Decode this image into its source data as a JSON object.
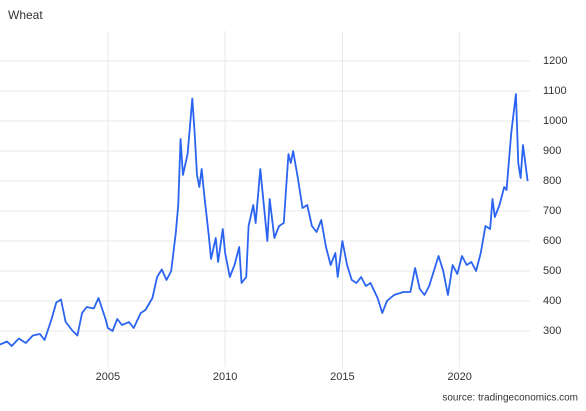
{
  "chart_data": {
    "type": "line",
    "title": "Wheat",
    "source": "source: tradingeconomics.com",
    "x": [
      2000.4,
      2000.7,
      2000.9,
      2001.2,
      2001.5,
      2001.8,
      2002.1,
      2002.3,
      2002.6,
      2002.8,
      2003.0,
      2003.2,
      2003.5,
      2003.7,
      2003.9,
      2004.1,
      2004.4,
      2004.6,
      2004.9,
      2005.0,
      2005.2,
      2005.4,
      2005.6,
      2005.9,
      2006.1,
      2006.4,
      2006.6,
      2006.9,
      2007.1,
      2007.3,
      2007.5,
      2007.7,
      2007.9,
      2008.0,
      2008.1,
      2008.2,
      2008.4,
      2008.6,
      2008.7,
      2008.8,
      2008.9,
      2009.0,
      2009.1,
      2009.3,
      2009.4,
      2009.6,
      2009.7,
      2009.9,
      2010.0,
      2010.2,
      2010.4,
      2010.6,
      2010.7,
      2010.9,
      2011.0,
      2011.2,
      2011.3,
      2011.5,
      2011.6,
      2011.8,
      2011.9,
      2012.1,
      2012.3,
      2012.5,
      2012.7,
      2012.8,
      2012.9,
      2013.1,
      2013.3,
      2013.5,
      2013.7,
      2013.9,
      2014.1,
      2014.3,
      2014.5,
      2014.7,
      2014.8,
      2015.0,
      2015.2,
      2015.4,
      2015.6,
      2015.8,
      2016.0,
      2016.2,
      2016.5,
      2016.7,
      2016.9,
      2017.2,
      2017.6,
      2017.9,
      2018.1,
      2018.3,
      2018.5,
      2018.7,
      2018.9,
      2019.1,
      2019.3,
      2019.5,
      2019.7,
      2019.9,
      2020.1,
      2020.3,
      2020.5,
      2020.7,
      2020.9,
      2021.1,
      2021.3,
      2021.4,
      2021.5,
      2021.7,
      2021.9,
      2022.0,
      2022.2,
      2022.4,
      2022.5,
      2022.6,
      2022.7,
      2022.9
    ],
    "series": [
      {
        "name": "Wheat",
        "color": "#2a64f0",
        "values": [
          255,
          265,
          250,
          275,
          260,
          285,
          290,
          270,
          340,
          395,
          405,
          330,
          300,
          285,
          360,
          380,
          375,
          410,
          340,
          310,
          300,
          340,
          320,
          330,
          310,
          360,
          370,
          410,
          480,
          505,
          470,
          500,
          630,
          720,
          940,
          820,
          890,
          1075,
          960,
          820,
          780,
          840,
          760,
          620,
          540,
          610,
          530,
          640,
          560,
          480,
          520,
          580,
          460,
          480,
          650,
          720,
          660,
          840,
          760,
          600,
          740,
          610,
          650,
          660,
          890,
          860,
          900,
          810,
          710,
          720,
          650,
          630,
          670,
          580,
          520,
          560,
          480,
          600,
          520,
          470,
          460,
          480,
          450,
          460,
          410,
          360,
          400,
          420,
          430,
          430,
          510,
          440,
          420,
          450,
          500,
          550,
          500,
          420,
          520,
          490,
          550,
          520,
          530,
          500,
          560,
          650,
          640,
          740,
          680,
          720,
          780,
          770,
          960,
          1090,
          860,
          810,
          920,
          800
        ]
      }
    ],
    "xlim": [
      2000.4,
      2023.0
    ],
    "xticks": [
      2005,
      2010,
      2015,
      2020
    ],
    "ylim": [
      180,
      1300
    ],
    "yticks": [
      300,
      400,
      500,
      600,
      700,
      800,
      900,
      1000,
      1100,
      1200
    ],
    "grid": true
  }
}
